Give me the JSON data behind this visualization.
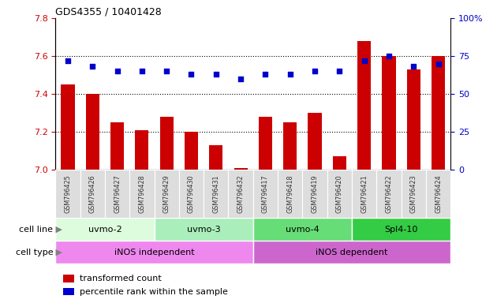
{
  "title": "GDS4355 / 10401428",
  "samples": [
    "GSM796425",
    "GSM796426",
    "GSM796427",
    "GSM796428",
    "GSM796429",
    "GSM796430",
    "GSM796431",
    "GSM796432",
    "GSM796417",
    "GSM796418",
    "GSM796419",
    "GSM796420",
    "GSM796421",
    "GSM796422",
    "GSM796423",
    "GSM796424"
  ],
  "bar_values": [
    7.45,
    7.4,
    7.25,
    7.21,
    7.28,
    7.2,
    7.13,
    7.01,
    7.28,
    7.25,
    7.3,
    7.07,
    7.68,
    7.6,
    7.53,
    7.6
  ],
  "dot_values": [
    72,
    68,
    65,
    65,
    65,
    63,
    63,
    60,
    63,
    63,
    65,
    65,
    72,
    75,
    68,
    70
  ],
  "ylim_left": [
    7.0,
    7.8
  ],
  "ylim_right": [
    0,
    100
  ],
  "yticks_left": [
    7.0,
    7.2,
    7.4,
    7.6,
    7.8
  ],
  "yticks_right": [
    0,
    25,
    50,
    75,
    100
  ],
  "bar_color": "#cc0000",
  "dot_color": "#0000cc",
  "cell_line_groups": [
    {
      "label": "uvmo-2",
      "start": 0,
      "end": 4,
      "color": "#ddfcdd"
    },
    {
      "label": "uvmo-3",
      "start": 4,
      "end": 8,
      "color": "#aaeebb"
    },
    {
      "label": "uvmo-4",
      "start": 8,
      "end": 12,
      "color": "#66dd77"
    },
    {
      "label": "Spl4-10",
      "start": 12,
      "end": 16,
      "color": "#33cc44"
    }
  ],
  "cell_type_groups": [
    {
      "label": "iNOS independent",
      "start": 0,
      "end": 8,
      "color": "#ee88ee"
    },
    {
      "label": "iNOS dependent",
      "start": 8,
      "end": 16,
      "color": "#cc66cc"
    }
  ],
  "cell_line_label": "cell line",
  "cell_type_label": "cell type",
  "legend_items": [
    {
      "label": "transformed count",
      "color": "#cc0000"
    },
    {
      "label": "percentile rank within the sample",
      "color": "#0000cc"
    }
  ],
  "bar_base": 7.0,
  "sample_bg": "#dddddd",
  "plot_bg": "#ffffff",
  "right_axis_top_label": "100%"
}
